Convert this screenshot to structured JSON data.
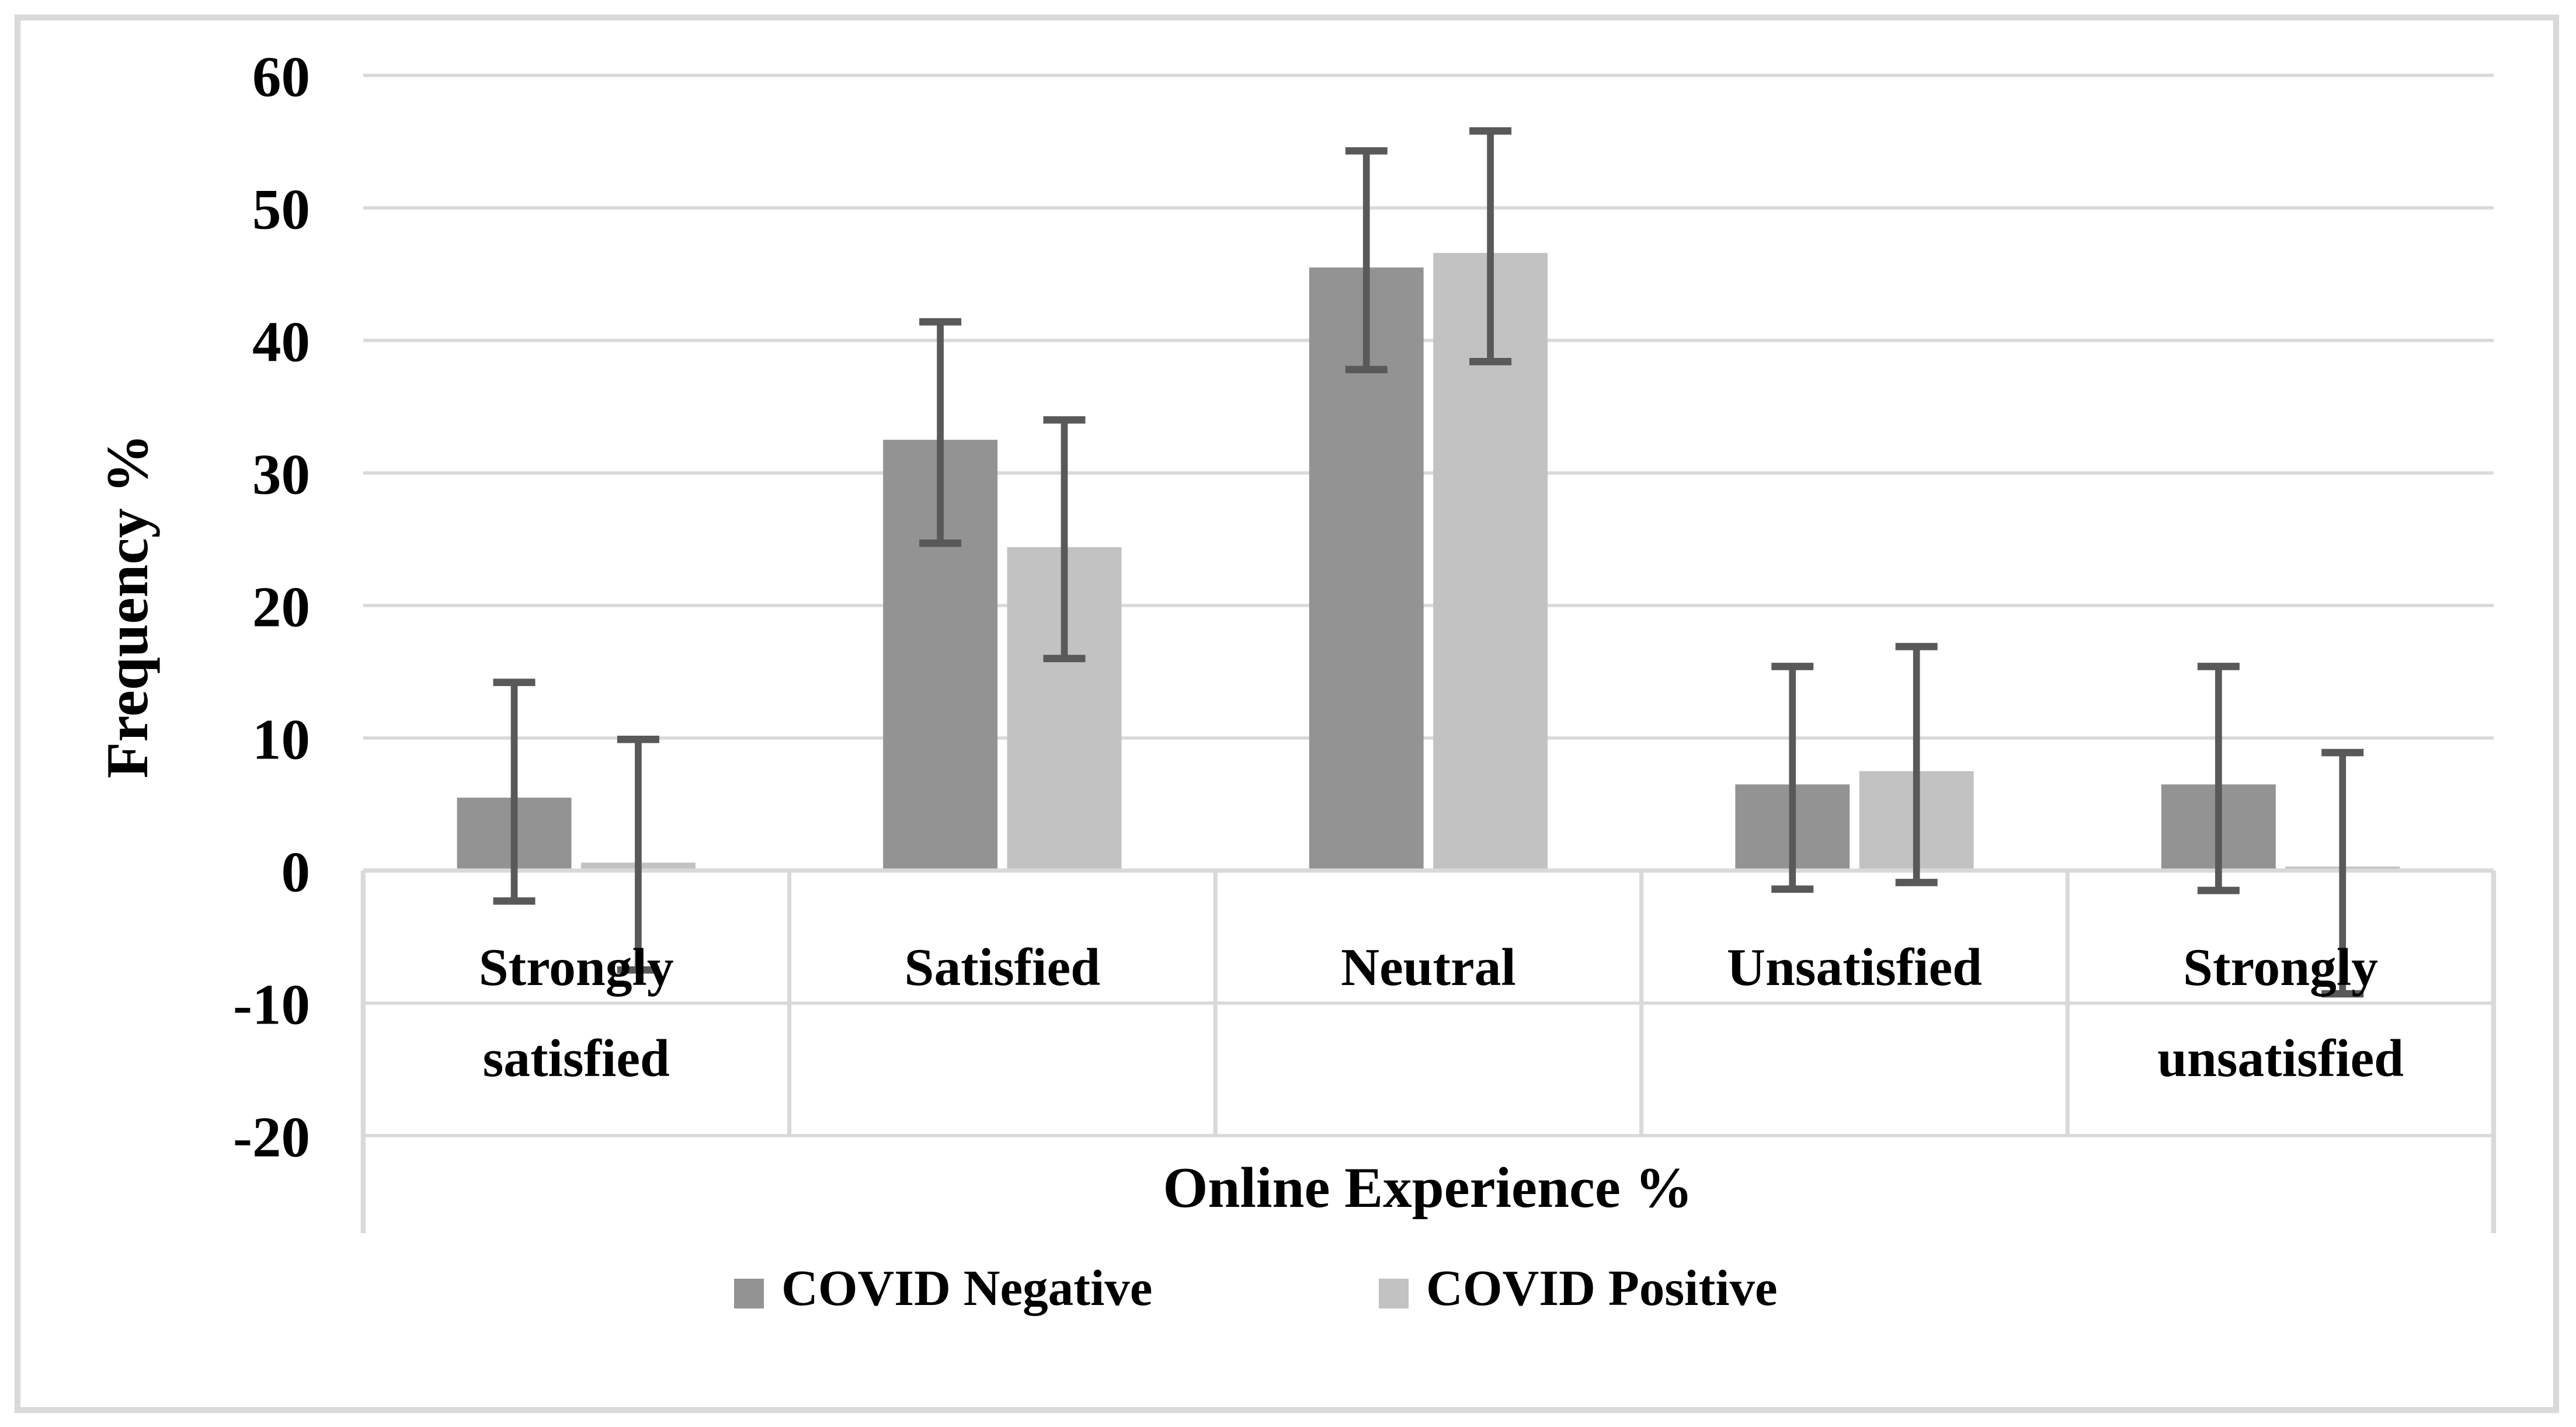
{
  "figure": {
    "border_color": "#D9D9D9",
    "background": "#FFFFFF"
  },
  "chart_data": {
    "type": "bar",
    "title": "",
    "xlabel": "Online Experience %",
    "ylabel": "Frequency %",
    "ylim": [
      -20,
      60
    ],
    "ytick_step": 10,
    "ytick_labels": [
      "60",
      "50",
      "40",
      "30",
      "20",
      "10",
      "0",
      "-10",
      "-20"
    ],
    "grid": true,
    "gridline_color": "#D9D9D9",
    "error_bar_color": "#595959",
    "legend_position": "bottom",
    "categories": [
      "Strongly satisfied",
      "Satisfied",
      "Neutral",
      "Unsatisfied",
      "Strongly unsatisfied"
    ],
    "category_label_lines": [
      [
        "Strongly",
        "satisfied"
      ],
      [
        "Satisfied"
      ],
      [
        "Neutral"
      ],
      [
        "Unsatisfied"
      ],
      [
        "Strongly",
        "unsatisfied"
      ]
    ],
    "series": [
      {
        "name": "COVID Negative",
        "color": "#939393",
        "values": [
          5.5,
          32.5,
          45.5,
          6.5,
          6.5
        ],
        "error_low": [
          -2.3,
          24.7,
          37.8,
          -1.4,
          -1.5
        ],
        "error_high": [
          14.2,
          41.4,
          54.3,
          15.4,
          15.4
        ]
      },
      {
        "name": "COVID Positive",
        "color": "#C2C2C2",
        "values": [
          0.6,
          24.4,
          46.6,
          7.5,
          0.3
        ],
        "error_low": [
          -7.5,
          16.0,
          38.4,
          -0.9,
          -9.3
        ],
        "error_high": [
          9.9,
          34.0,
          55.8,
          16.9,
          8.9
        ]
      }
    ]
  }
}
